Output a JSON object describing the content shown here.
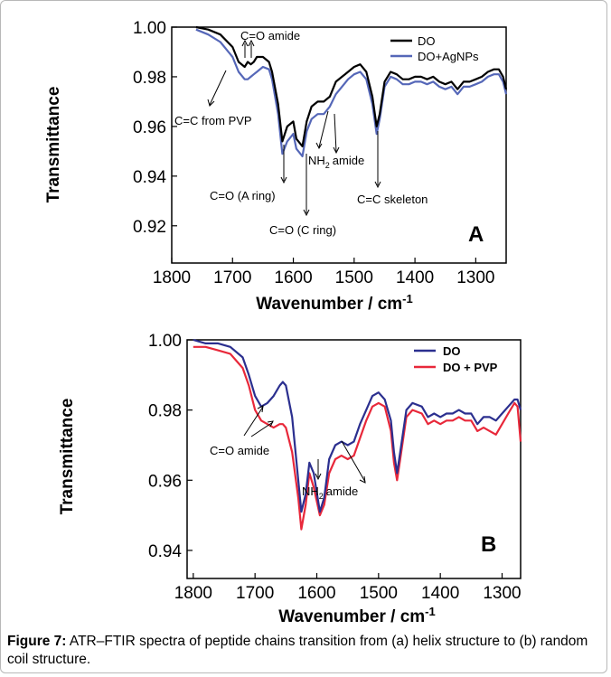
{
  "caption": {
    "label": "Figure 7:",
    "text": " ATR–FTIR spectra of peptide chains transition from (a) helix structure to (b) random coil structure."
  },
  "chart_data": [
    {
      "type": "line",
      "panel_label": "A",
      "xlabel": "Wavenumber / cm",
      "xlabel_sup": "-1",
      "ylabel": "Transmittance",
      "xlim": [
        1800,
        1250
      ],
      "ylim": [
        0.905,
        1.0
      ],
      "x_ticks": [
        "1800",
        "1700",
        "1600",
        "1500",
        "1400",
        "1300"
      ],
      "y_ticks": [
        "1.00",
        "0.98",
        "0.96",
        "0.94",
        "0.92"
      ],
      "legend_position": "top-right",
      "series": [
        {
          "name": "DO",
          "color": "#000000",
          "x": [
            1760,
            1740,
            1720,
            1700,
            1690,
            1680,
            1675,
            1670,
            1665,
            1660,
            1650,
            1640,
            1635,
            1625,
            1618,
            1610,
            1600,
            1595,
            1585,
            1578,
            1570,
            1560,
            1550,
            1540,
            1530,
            1520,
            1510,
            1500,
            1490,
            1480,
            1470,
            1463,
            1458,
            1450,
            1440,
            1430,
            1420,
            1410,
            1400,
            1390,
            1380,
            1370,
            1360,
            1350,
            1340,
            1330,
            1320,
            1310,
            1300,
            1290,
            1280,
            1270,
            1262,
            1255,
            1250
          ],
          "values": [
            1.0,
            0.999,
            0.997,
            0.992,
            0.986,
            0.984,
            0.986,
            0.985,
            0.986,
            0.988,
            0.988,
            0.986,
            0.982,
            0.969,
            0.954,
            0.96,
            0.962,
            0.955,
            0.952,
            0.962,
            0.968,
            0.97,
            0.97,
            0.972,
            0.978,
            0.98,
            0.982,
            0.984,
            0.985,
            0.982,
            0.972,
            0.96,
            0.965,
            0.978,
            0.982,
            0.981,
            0.979,
            0.979,
            0.98,
            0.98,
            0.979,
            0.98,
            0.978,
            0.977,
            0.978,
            0.975,
            0.978,
            0.978,
            0.979,
            0.98,
            0.982,
            0.983,
            0.983,
            0.98,
            0.975
          ]
        },
        {
          "name": "DO+AgNPs",
          "color": "#5567b8",
          "x": [
            1760,
            1740,
            1720,
            1700,
            1690,
            1680,
            1675,
            1670,
            1665,
            1660,
            1650,
            1640,
            1635,
            1625,
            1618,
            1610,
            1600,
            1595,
            1585,
            1578,
            1570,
            1560,
            1550,
            1540,
            1530,
            1520,
            1510,
            1500,
            1490,
            1480,
            1470,
            1463,
            1458,
            1450,
            1440,
            1430,
            1420,
            1410,
            1400,
            1390,
            1380,
            1370,
            1360,
            1350,
            1340,
            1330,
            1320,
            1310,
            1300,
            1290,
            1280,
            1270,
            1262,
            1255,
            1250
          ],
          "values": [
            0.999,
            0.997,
            0.994,
            0.988,
            0.982,
            0.979,
            0.979,
            0.98,
            0.981,
            0.982,
            0.984,
            0.983,
            0.979,
            0.965,
            0.949,
            0.954,
            0.957,
            0.951,
            0.948,
            0.958,
            0.963,
            0.965,
            0.965,
            0.968,
            0.973,
            0.976,
            0.979,
            0.981,
            0.982,
            0.979,
            0.969,
            0.957,
            0.963,
            0.976,
            0.98,
            0.979,
            0.977,
            0.977,
            0.978,
            0.978,
            0.977,
            0.978,
            0.976,
            0.975,
            0.976,
            0.973,
            0.976,
            0.976,
            0.977,
            0.978,
            0.98,
            0.981,
            0.981,
            0.978,
            0.973
          ]
        }
      ],
      "annotations": [
        "C=O amide",
        "C=C from PVP",
        "C=O (A ring)",
        "C=O (C ring)",
        "NH",
        "amide",
        "C=C  skeleton"
      ]
    },
    {
      "type": "line",
      "panel_label": "B",
      "xlabel": "Wavenumber / cm",
      "xlabel_sup": "-1",
      "ylabel": "Transmittance",
      "xlim": [
        1810,
        1270
      ],
      "ylim": [
        0.932,
        1.0
      ],
      "x_ticks": [
        "1800",
        "1700",
        "1600",
        "1500",
        "1400",
        "1300"
      ],
      "y_ticks": [
        "1.00",
        "0.98",
        "0.96",
        "0.94"
      ],
      "legend_position": "top-right",
      "series": [
        {
          "name": "DO",
          "color": "#2b2f8f",
          "x": [
            1800,
            1780,
            1760,
            1740,
            1720,
            1710,
            1700,
            1690,
            1680,
            1670,
            1660,
            1655,
            1650,
            1640,
            1630,
            1625,
            1618,
            1612,
            1605,
            1595,
            1588,
            1580,
            1570,
            1560,
            1550,
            1540,
            1530,
            1520,
            1510,
            1500,
            1490,
            1480,
            1475,
            1470,
            1465,
            1455,
            1445,
            1430,
            1420,
            1410,
            1400,
            1390,
            1380,
            1370,
            1360,
            1350,
            1340,
            1330,
            1320,
            1310,
            1300,
            1290,
            1280,
            1275,
            1270
          ],
          "values": [
            1.0,
            0.999,
            0.999,
            0.998,
            0.995,
            0.99,
            0.984,
            0.981,
            0.982,
            0.984,
            0.987,
            0.988,
            0.987,
            0.978,
            0.96,
            0.951,
            0.956,
            0.965,
            0.962,
            0.951,
            0.955,
            0.966,
            0.97,
            0.971,
            0.97,
            0.971,
            0.976,
            0.98,
            0.984,
            0.985,
            0.983,
            0.977,
            0.968,
            0.962,
            0.968,
            0.98,
            0.982,
            0.981,
            0.978,
            0.979,
            0.978,
            0.979,
            0.979,
            0.98,
            0.979,
            0.979,
            0.976,
            0.978,
            0.978,
            0.977,
            0.979,
            0.981,
            0.983,
            0.983,
            0.98
          ]
        },
        {
          "name": "DO + PVP",
          "color": "#e8283a",
          "x": [
            1800,
            1780,
            1760,
            1740,
            1720,
            1710,
            1700,
            1690,
            1680,
            1670,
            1660,
            1655,
            1650,
            1640,
            1630,
            1625,
            1618,
            1612,
            1605,
            1595,
            1588,
            1580,
            1570,
            1560,
            1550,
            1540,
            1530,
            1520,
            1510,
            1500,
            1490,
            1480,
            1475,
            1470,
            1465,
            1455,
            1445,
            1430,
            1420,
            1410,
            1400,
            1390,
            1380,
            1370,
            1360,
            1350,
            1340,
            1330,
            1320,
            1310,
            1300,
            1290,
            1280,
            1275,
            1270
          ],
          "values": [
            0.998,
            0.998,
            0.997,
            0.996,
            0.992,
            0.987,
            0.98,
            0.977,
            0.976,
            0.975,
            0.976,
            0.976,
            0.975,
            0.968,
            0.955,
            0.946,
            0.953,
            0.962,
            0.958,
            0.95,
            0.953,
            0.962,
            0.966,
            0.967,
            0.966,
            0.967,
            0.972,
            0.977,
            0.981,
            0.982,
            0.981,
            0.974,
            0.965,
            0.96,
            0.966,
            0.978,
            0.98,
            0.979,
            0.976,
            0.977,
            0.976,
            0.977,
            0.977,
            0.978,
            0.977,
            0.977,
            0.974,
            0.975,
            0.974,
            0.973,
            0.976,
            0.979,
            0.982,
            0.981,
            0.971
          ]
        }
      ],
      "annotations": [
        "C=O amide",
        "NH",
        "amide"
      ]
    }
  ]
}
